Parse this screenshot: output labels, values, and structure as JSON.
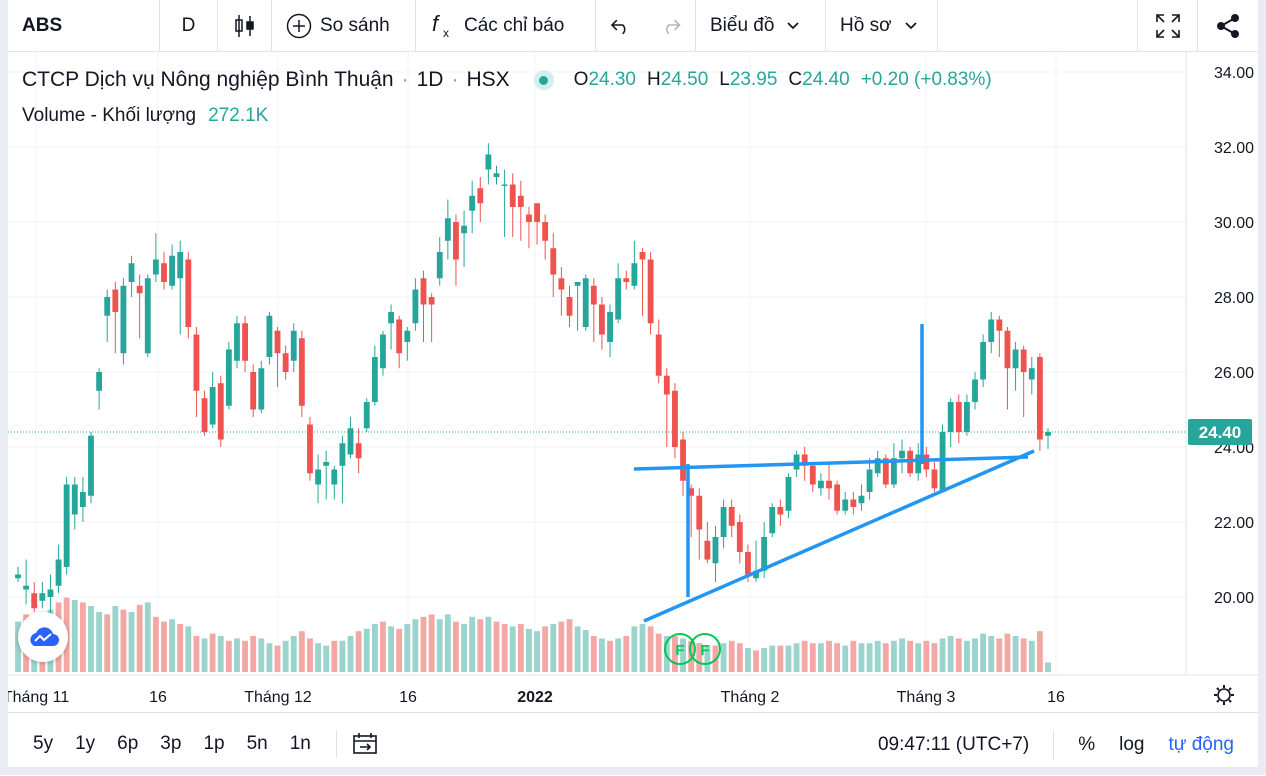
{
  "toolbar": {
    "symbol": "ABS",
    "interval": "D",
    "compare_label": "So sánh",
    "indicators_label": "Các chỉ báo",
    "chart_label": "Biểu đồ",
    "profile_label": "Hồ sơ"
  },
  "legend": {
    "name": "CTCP Dịch vụ Nông nghiệp Bình Thuận",
    "interval": "1D",
    "exchange": "HSX",
    "o_label": "O",
    "o": "24.30",
    "h_label": "H",
    "h": "24.50",
    "l_label": "L",
    "l": "23.95",
    "c_label": "C",
    "c": "24.40",
    "change": "+0.20 (+0.83%)",
    "volume_label": "Volume - Khối lượng",
    "volume_value": "272.1K"
  },
  "price_axis": {
    "labels": [
      "34.00",
      "32.00",
      "30.00",
      "28.00",
      "26.00",
      "24.00",
      "22.00",
      "20.00"
    ],
    "last_price": "24.40"
  },
  "time_axis": {
    "labels": [
      "Tháng 11",
      "16",
      "Tháng 12",
      "16",
      "2022",
      "Tháng 2",
      "Tháng 3",
      "16"
    ]
  },
  "markers": [
    "F",
    "F"
  ],
  "bottom": {
    "ranges": [
      "5y",
      "1y",
      "6p",
      "3p",
      "1p",
      "5n",
      "1n"
    ],
    "clock": "09:47:11 (UTC+7)",
    "percent": "%",
    "log": "log",
    "auto": "tự động"
  },
  "colors": {
    "up": "#26a69a",
    "down": "#ef5350",
    "up_vol": "#9bd4cd",
    "down_vol": "#f4a8a5",
    "drawing": "#2196f3",
    "accent": "#2962ff"
  },
  "chart_data": {
    "type": "candlestick",
    "ylim": [
      18.0,
      34.4
    ],
    "last_price": 24.4,
    "candles": [
      [
        20.5,
        20.6,
        20.4,
        20.8
      ],
      [
        20.2,
        20.3,
        19.8,
        21.0
      ],
      [
        20.1,
        19.7,
        19.6,
        20.4
      ],
      [
        19.9,
        20.1,
        19.7,
        20.4
      ],
      [
        20.0,
        20.2,
        19.5,
        20.6
      ],
      [
        20.3,
        21.0,
        20.1,
        21.4
      ],
      [
        20.8,
        23.0,
        20.6,
        23.2
      ],
      [
        22.2,
        23.0,
        21.8,
        23.2
      ],
      [
        22.4,
        22.8,
        22.0,
        23.2
      ],
      [
        22.7,
        24.3,
        22.5,
        24.4
      ],
      [
        25.5,
        26.0,
        25.0,
        26.1
      ],
      [
        27.5,
        28.0,
        26.8,
        28.2
      ],
      [
        28.2,
        27.6,
        26.5,
        28.4
      ],
      [
        26.5,
        28.3,
        26.2,
        28.5
      ],
      [
        28.4,
        28.9,
        28.0,
        29.1
      ],
      [
        28.3,
        28.1,
        26.9,
        28.6
      ],
      [
        26.5,
        28.5,
        26.4,
        28.6
      ],
      [
        28.6,
        29.0,
        28.4,
        29.7
      ],
      [
        28.9,
        28.4,
        28.2,
        29.2
      ],
      [
        28.3,
        29.1,
        28.2,
        29.4
      ],
      [
        28.5,
        29.2,
        27.0,
        29.5
      ],
      [
        29.0,
        27.2,
        26.9,
        29.2
      ],
      [
        27.0,
        25.5,
        24.8,
        27.2
      ],
      [
        25.3,
        24.4,
        24.3,
        25.5
      ],
      [
        24.6,
        25.6,
        24.5,
        26.0
      ],
      [
        25.7,
        24.2,
        24.0,
        25.9
      ],
      [
        25.1,
        26.6,
        25.0,
        26.8
      ],
      [
        26.3,
        27.3,
        26.1,
        27.5
      ],
      [
        27.3,
        26.3,
        26.0,
        27.5
      ],
      [
        26.0,
        25.0,
        24.8,
        26.2
      ],
      [
        25.0,
        26.1,
        24.9,
        26.3
      ],
      [
        26.4,
        27.5,
        26.2,
        27.6
      ],
      [
        27.1,
        26.5,
        25.6,
        27.2
      ],
      [
        26.5,
        26.0,
        25.8,
        26.7
      ],
      [
        26.3,
        27.1,
        26.0,
        27.3
      ],
      [
        26.9,
        25.1,
        24.8,
        27.1
      ],
      [
        24.6,
        23.3,
        23.1,
        24.8
      ],
      [
        23.0,
        23.4,
        22.5,
        23.8
      ],
      [
        23.5,
        23.6,
        22.6,
        23.9
      ],
      [
        23.0,
        23.4,
        22.6,
        23.5
      ],
      [
        23.5,
        24.1,
        22.5,
        24.3
      ],
      [
        23.8,
        24.5,
        23.7,
        24.8
      ],
      [
        24.1,
        23.7,
        23.3,
        24.5
      ],
      [
        24.5,
        25.2,
        24.4,
        25.3
      ],
      [
        25.2,
        26.4,
        25.1,
        26.7
      ],
      [
        26.1,
        27.0,
        25.9,
        27.1
      ],
      [
        27.3,
        27.6,
        26.6,
        27.8
      ],
      [
        27.4,
        26.5,
        26.1,
        27.5
      ],
      [
        26.8,
        27.1,
        26.3,
        27.2
      ],
      [
        27.3,
        28.2,
        27.1,
        28.5
      ],
      [
        28.5,
        27.8,
        26.8,
        28.7
      ],
      [
        28.0,
        27.8,
        26.8,
        28.1
      ],
      [
        28.5,
        29.2,
        28.3,
        29.6
      ],
      [
        29.5,
        30.1,
        29.0,
        30.6
      ],
      [
        30.0,
        29.0,
        28.3,
        30.2
      ],
      [
        29.7,
        29.9,
        28.8,
        30.3
      ],
      [
        30.3,
        30.7,
        29.7,
        31.1
      ],
      [
        30.9,
        30.5,
        30.0,
        31.2
      ],
      [
        31.4,
        31.8,
        31.0,
        32.1
      ],
      [
        31.2,
        31.3,
        31.0,
        31.5
      ],
      [
        31.0,
        31.0,
        29.6,
        31.4
      ],
      [
        31.0,
        30.4,
        29.6,
        31.3
      ],
      [
        30.7,
        30.4,
        29.5,
        31.1
      ],
      [
        30.2,
        30.0,
        29.3,
        30.4
      ],
      [
        30.5,
        30.0,
        29.4,
        30.5
      ],
      [
        30.0,
        29.5,
        29.0,
        30.2
      ],
      [
        29.3,
        28.6,
        28.0,
        29.7
      ],
      [
        28.5,
        28.2,
        27.5,
        28.8
      ],
      [
        28.0,
        27.5,
        27.2,
        28.3
      ],
      [
        28.3,
        28.4,
        27.1,
        28.4
      ],
      [
        27.2,
        28.5,
        27.1,
        28.6
      ],
      [
        28.3,
        27.8,
        26.8,
        28.5
      ],
      [
        27.8,
        27.0,
        26.6,
        28.0
      ],
      [
        26.8,
        27.6,
        26.4,
        27.8
      ],
      [
        27.4,
        28.5,
        27.3,
        28.9
      ],
      [
        28.5,
        28.4,
        28.2,
        28.7
      ],
      [
        28.3,
        28.9,
        28.2,
        29.5
      ],
      [
        29.2,
        29.0,
        27.5,
        29.3
      ],
      [
        29.0,
        27.3,
        27.0,
        29.2
      ],
      [
        27.0,
        25.9,
        25.7,
        27.4
      ],
      [
        25.9,
        25.4,
        24.0,
        26.1
      ],
      [
        25.5,
        24.0,
        23.7,
        25.7
      ],
      [
        24.2,
        23.1,
        22.7,
        24.4
      ],
      [
        22.9,
        22.7,
        21.6,
        23.0
      ],
      [
        22.7,
        21.8,
        21.0,
        22.9
      ],
      [
        21.5,
        21.0,
        20.9,
        22.0
      ],
      [
        20.9,
        21.6,
        20.4,
        21.9
      ],
      [
        21.6,
        22.4,
        21.3,
        22.6
      ],
      [
        22.4,
        21.9,
        21.6,
        22.6
      ],
      [
        22.0,
        21.2,
        20.9,
        22.2
      ],
      [
        21.2,
        20.6,
        20.4,
        21.4
      ],
      [
        20.5,
        20.7,
        20.4,
        21.5
      ],
      [
        20.7,
        21.6,
        20.5,
        22.0
      ],
      [
        21.7,
        22.4,
        21.6,
        22.5
      ],
      [
        22.4,
        22.2,
        21.9,
        22.6
      ],
      [
        22.3,
        23.2,
        22.1,
        23.3
      ],
      [
        23.4,
        23.8,
        23.2,
        23.9
      ],
      [
        23.8,
        23.5,
        23.1,
        24.0
      ],
      [
        23.5,
        23.0,
        22.8,
        23.6
      ],
      [
        22.9,
        23.1,
        22.7,
        23.3
      ],
      [
        23.1,
        22.9,
        22.6,
        23.6
      ],
      [
        23.0,
        22.3,
        22.2,
        23.1
      ],
      [
        22.3,
        22.6,
        22.2,
        22.8
      ],
      [
        22.6,
        22.4,
        22.2,
        22.8
      ],
      [
        22.5,
        22.7,
        22.3,
        23.0
      ],
      [
        22.8,
        23.4,
        22.6,
        23.7
      ],
      [
        23.3,
        23.7,
        23.2,
        23.9
      ],
      [
        23.7,
        23.0,
        22.9,
        23.8
      ],
      [
        23.0,
        23.7,
        22.9,
        24.1
      ],
      [
        23.7,
        23.9,
        23.3,
        24.2
      ],
      [
        23.9,
        23.3,
        23.2,
        24.0
      ],
      [
        23.3,
        23.8,
        23.1,
        24.1
      ],
      [
        23.8,
        23.4,
        23.2,
        24.0
      ],
      [
        23.4,
        22.9,
        22.8,
        23.6
      ],
      [
        22.8,
        24.4,
        22.8,
        24.6
      ],
      [
        24.4,
        25.2,
        24.0,
        25.3
      ],
      [
        25.2,
        24.4,
        24.1,
        25.4
      ],
      [
        24.4,
        25.2,
        24.3,
        25.4
      ],
      [
        25.2,
        25.8,
        25.0,
        26.0
      ],
      [
        25.8,
        26.8,
        25.6,
        27.0
      ],
      [
        26.8,
        27.4,
        26.5,
        27.6
      ],
      [
        27.4,
        27.1,
        26.4,
        27.5
      ],
      [
        27.1,
        26.1,
        25.0,
        27.2
      ],
      [
        26.1,
        26.6,
        25.5,
        26.8
      ],
      [
        26.6,
        26.0,
        24.8,
        26.7
      ],
      [
        25.8,
        26.1,
        25.4,
        26.4
      ],
      [
        26.4,
        24.2,
        23.9,
        26.5
      ],
      [
        24.3,
        24.4,
        23.95,
        24.5
      ]
    ],
    "volumes": [
      [
        0.42,
        1
      ],
      [
        0.48,
        0
      ],
      [
        0.35,
        1
      ],
      [
        0.4,
        0
      ],
      [
        0.52,
        1
      ],
      [
        0.58,
        0
      ],
      [
        0.62,
        0
      ],
      [
        0.6,
        1
      ],
      [
        0.58,
        0
      ],
      [
        0.55,
        1
      ],
      [
        0.5,
        1
      ],
      [
        0.48,
        0
      ],
      [
        0.55,
        1
      ],
      [
        0.52,
        0
      ],
      [
        0.5,
        1
      ],
      [
        0.56,
        0
      ],
      [
        0.58,
        1
      ],
      [
        0.46,
        0
      ],
      [
        0.42,
        0
      ],
      [
        0.44,
        1
      ],
      [
        0.4,
        0
      ],
      [
        0.38,
        1
      ],
      [
        0.3,
        0
      ],
      [
        0.28,
        1
      ],
      [
        0.32,
        0
      ],
      [
        0.3,
        1
      ],
      [
        0.26,
        0
      ],
      [
        0.28,
        1
      ],
      [
        0.26,
        0
      ],
      [
        0.3,
        0
      ],
      [
        0.28,
        1
      ],
      [
        0.24,
        1
      ],
      [
        0.22,
        0
      ],
      [
        0.26,
        1
      ],
      [
        0.3,
        1
      ],
      [
        0.34,
        0
      ],
      [
        0.28,
        0
      ],
      [
        0.24,
        1
      ],
      [
        0.22,
        1
      ],
      [
        0.26,
        0
      ],
      [
        0.26,
        1
      ],
      [
        0.3,
        1
      ],
      [
        0.34,
        0
      ],
      [
        0.36,
        1
      ],
      [
        0.4,
        1
      ],
      [
        0.42,
        0
      ],
      [
        0.38,
        1
      ],
      [
        0.36,
        0
      ],
      [
        0.4,
        1
      ],
      [
        0.44,
        1
      ],
      [
        0.46,
        0
      ],
      [
        0.48,
        0
      ],
      [
        0.44,
        1
      ],
      [
        0.48,
        1
      ],
      [
        0.42,
        0
      ],
      [
        0.4,
        1
      ],
      [
        0.46,
        1
      ],
      [
        0.44,
        0
      ],
      [
        0.46,
        1
      ],
      [
        0.42,
        0
      ],
      [
        0.4,
        0
      ],
      [
        0.38,
        1
      ],
      [
        0.4,
        0
      ],
      [
        0.36,
        1
      ],
      [
        0.34,
        1
      ],
      [
        0.38,
        0
      ],
      [
        0.4,
        1
      ],
      [
        0.42,
        0
      ],
      [
        0.44,
        0
      ],
      [
        0.38,
        1
      ],
      [
        0.35,
        1
      ],
      [
        0.3,
        0
      ],
      [
        0.28,
        1
      ],
      [
        0.26,
        0
      ],
      [
        0.28,
        1
      ],
      [
        0.3,
        0
      ],
      [
        0.38,
        1
      ],
      [
        0.4,
        1
      ],
      [
        0.38,
        0
      ],
      [
        0.32,
        0
      ],
      [
        0.3,
        1
      ],
      [
        0.3,
        0
      ],
      [
        0.28,
        1
      ],
      [
        0.26,
        0
      ],
      [
        0.24,
        0
      ],
      [
        0.22,
        1
      ],
      [
        0.22,
        0
      ],
      [
        0.24,
        1
      ],
      [
        0.26,
        0
      ],
      [
        0.24,
        0
      ],
      [
        0.2,
        1
      ],
      [
        0.18,
        0
      ],
      [
        0.2,
        1
      ],
      [
        0.22,
        1
      ],
      [
        0.22,
        0
      ],
      [
        0.22,
        1
      ],
      [
        0.24,
        1
      ],
      [
        0.26,
        0
      ],
      [
        0.24,
        0
      ],
      [
        0.24,
        1
      ],
      [
        0.26,
        0
      ],
      [
        0.24,
        0
      ],
      [
        0.22,
        1
      ],
      [
        0.26,
        0
      ],
      [
        0.24,
        1
      ],
      [
        0.24,
        1
      ],
      [
        0.26,
        1
      ],
      [
        0.24,
        0
      ],
      [
        0.26,
        1
      ],
      [
        0.28,
        1
      ],
      [
        0.26,
        0
      ],
      [
        0.24,
        1
      ],
      [
        0.26,
        0
      ],
      [
        0.24,
        0
      ],
      [
        0.28,
        1
      ],
      [
        0.3,
        1
      ],
      [
        0.28,
        0
      ],
      [
        0.26,
        1
      ],
      [
        0.28,
        1
      ],
      [
        0.32,
        1
      ],
      [
        0.3,
        1
      ],
      [
        0.28,
        0
      ],
      [
        0.32,
        0
      ],
      [
        0.3,
        1
      ],
      [
        0.28,
        0
      ],
      [
        0.26,
        1
      ],
      [
        0.34,
        0
      ],
      [
        0.08,
        1
      ]
    ]
  }
}
